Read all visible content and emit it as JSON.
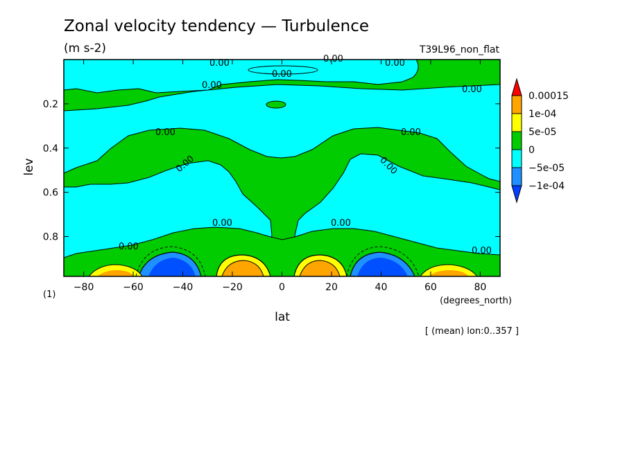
{
  "chart_data": {
    "type": "heatmap",
    "subtype": "filled-contour",
    "title": "Zonal velocity tendency — Turbulence",
    "units": "(m s-2)",
    "run_label": "T39L96_non_flat",
    "xlabel": "lat",
    "x_units": "(degrees_north)",
    "ylabel": "lev",
    "y_units": "(1)",
    "x_ticks": [
      -80,
      -60,
      -40,
      -20,
      0,
      20,
      40,
      60,
      80
    ],
    "y_ticks": [
      "0.2",
      "0.4",
      "0.6",
      "0.8"
    ],
    "xlim": [
      -88,
      88
    ],
    "ylim": [
      0.0,
      0.98
    ],
    "y_inverted": true,
    "averaging_note": "[ (mean) lon:0..357 ]",
    "contour_labels": [
      "0.00",
      "0.00",
      "0.00",
      "0.00",
      "0.00",
      "0.00",
      "0.00",
      "0.00",
      "0.00",
      "0.00",
      "0.00",
      "0.00",
      "0.00",
      "0.00"
    ],
    "colorbar": {
      "labels": [
        "0.00015",
        "1e-04",
        "5e-05",
        "0",
        "−5e-05",
        "−1e-04"
      ],
      "colors": [
        "#ff0000",
        "#ffa500",
        "#ffff00",
        "#00cc00",
        "#00ffff",
        "#1e90ff",
        "#0040ff"
      ]
    }
  }
}
